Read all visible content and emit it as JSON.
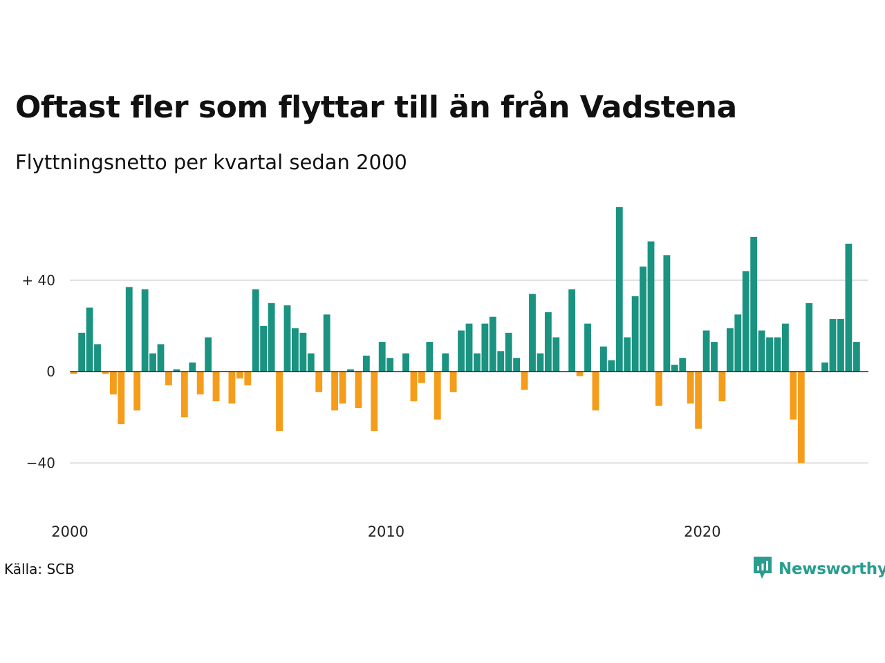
{
  "chart_data": {
    "type": "bar",
    "title": "Oftast fler som flyttar till än från Vadstena",
    "subtitle": "Flyttningsnetto per kvartal sedan 2000",
    "xlabel": "",
    "ylabel": "",
    "x_start": 2000,
    "periods_per_year": 4,
    "xlim": [
      2000,
      2025.25
    ],
    "ylim": [
      -55,
      75
    ],
    "y_ticks": [
      40,
      0,
      -40
    ],
    "y_tick_labels": [
      "+ 40",
      "0",
      "−40"
    ],
    "x_ticks": [
      2000,
      2010,
      2020
    ],
    "x_tick_labels": [
      "2000",
      "2010",
      "2020"
    ],
    "grid": true,
    "legend": "none",
    "colors": {
      "positive": "#1a9381",
      "negative": "#f59d1a",
      "grid": "#dddddd",
      "zero": "#222222"
    },
    "values": [
      -1,
      17,
      28,
      12,
      -1,
      -10,
      -23,
      37,
      -17,
      36,
      8,
      12,
      -6,
      1,
      -20,
      4,
      -10,
      15,
      -13,
      0,
      -14,
      -3,
      -6,
      36,
      20,
      30,
      -26,
      29,
      19,
      17,
      8,
      -9,
      25,
      -17,
      -14,
      1,
      -16,
      7,
      -26,
      13,
      6,
      0,
      8,
      -13,
      -5,
      13,
      -21,
      8,
      -9,
      18,
      21,
      8,
      21,
      24,
      9,
      17,
      6,
      -8,
      34,
      8,
      26,
      15,
      0,
      36,
      -2,
      21,
      -17,
      11,
      5,
      72,
      15,
      33,
      46,
      57,
      -15,
      51,
      3,
      6,
      -14,
      -25,
      18,
      13,
      -13,
      19,
      25,
      44,
      59,
      18,
      15,
      15,
      21,
      -21,
      -40,
      30,
      0,
      4,
      23,
      23,
      56,
      13
    ]
  },
  "source": "Källa: SCB",
  "logo": {
    "text": "Newsworthy",
    "icon": "newsworthy-chart-icon",
    "color": "#2a9d8f"
  }
}
